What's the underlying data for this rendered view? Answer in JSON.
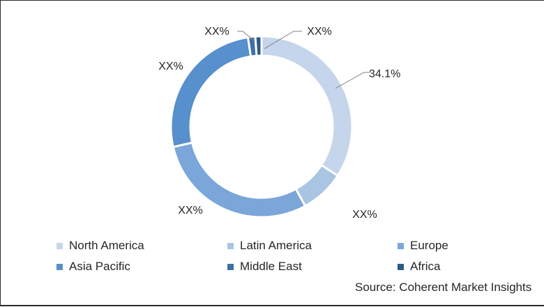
{
  "chart_data": {
    "type": "pie",
    "donut": true,
    "slices": [
      {
        "label": "North America",
        "value": 34.1,
        "display": "34.1%",
        "color": "#c5d5eb"
      },
      {
        "label": "Latin America",
        "value": 7.9,
        "display": "XX%",
        "color": "#aac4e3"
      },
      {
        "label": "Europe",
        "value": 29.4,
        "display": "XX%",
        "color": "#7aa6da"
      },
      {
        "label": "Asia Pacific",
        "value": 26.2,
        "display": "XX%",
        "color": "#5790cc"
      },
      {
        "label": "Middle East",
        "value": 1.3,
        "display": "XX%",
        "color": "#3e6fa6"
      },
      {
        "label": "Africa",
        "value": 1.1,
        "display": "XX%",
        "color": "#2f5a86"
      }
    ],
    "legend_position": "bottom"
  },
  "source": "Source: Coherent Market Insights"
}
